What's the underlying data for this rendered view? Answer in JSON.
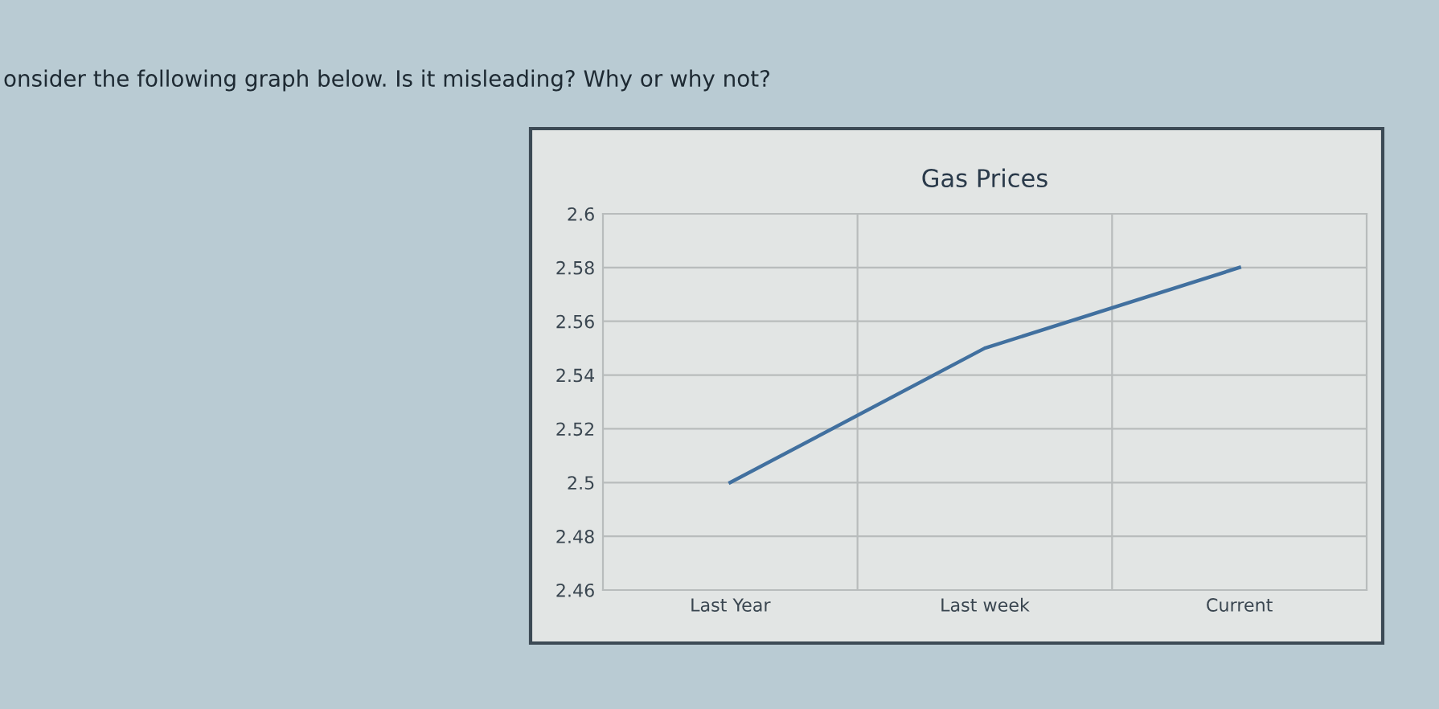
{
  "chart_data": {
    "type": "line",
    "title": "Gas Prices",
    "annotations": [
      "onsider the following graph below. Is it misleading? Why or why not?"
    ],
    "categories": [
      "Last Year",
      "Last week",
      "Current"
    ],
    "series": [
      {
        "color": "#41709f",
        "values": [
          2.5,
          2.55,
          2.58
        ]
      }
    ],
    "ylim": [
      2.46,
      2.6
    ],
    "yticks": [
      2.46,
      2.48,
      2.5,
      2.52,
      2.54,
      2.56,
      2.58,
      2.6
    ],
    "grid": true,
    "legend": false,
    "marker": "none",
    "line_style": "solid"
  }
}
